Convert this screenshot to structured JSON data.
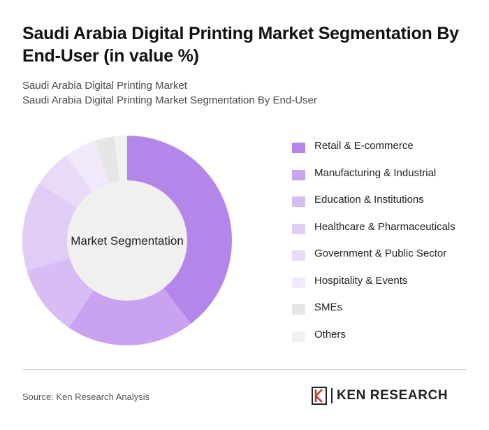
{
  "header": {
    "title": "Saudi Arabia Digital Printing Market Segmentation By End-User (in value %)",
    "subtitle_1": "Saudi Arabia Digital Printing Market",
    "subtitle_2": "Saudi Arabia Digital Printing Market Segmentation By End-User"
  },
  "footer": {
    "source": "Source: Ken Research Analysis",
    "logo_text": "KEN RESEARCH"
  },
  "chart_data": {
    "type": "pie",
    "center_label": "Market Segmentation",
    "legend_position": "right",
    "categories": [
      "Retail & E-commerce",
      "Manufacturing & Industrial",
      "Education & Institutions",
      "Healthcare & Pharmaceuticals",
      "Government & Public Sector",
      "Hospitality & Events",
      "SMEs",
      "Others"
    ],
    "values": [
      40,
      20,
      11,
      14,
      6,
      5,
      3,
      2
    ],
    "colors": [
      "#b586ea",
      "#c9a3f0",
      "#d8bdf4",
      "#e1ccf6",
      "#e9dbf8",
      "#f1e9fb",
      "#e6e6e6",
      "#f2f2f2"
    ]
  }
}
